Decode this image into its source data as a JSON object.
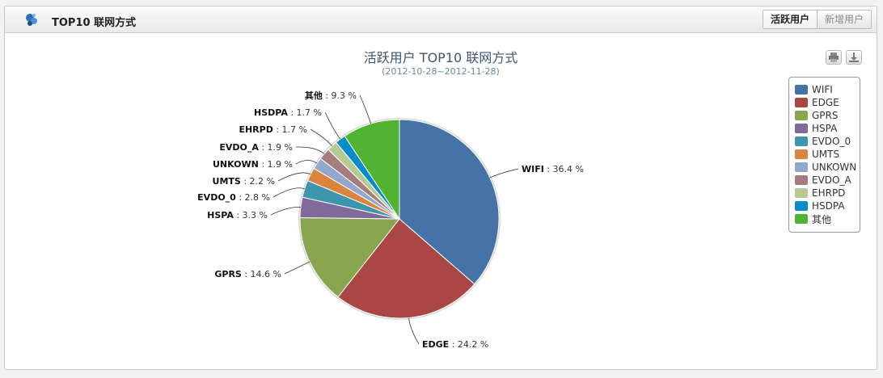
{
  "header": {
    "title": "TOP10 联网方式",
    "tabs": [
      {
        "label": "活跃用户",
        "active": true
      },
      {
        "label": "新增用户",
        "active": false
      }
    ]
  },
  "toolbar": {
    "print_icon": "printer-icon",
    "export_icon": "download-icon"
  },
  "chart_data": {
    "type": "pie",
    "title": "活跃用户 TOP10 联网方式",
    "subtitle": "(2012-10-28~2012-11-28)",
    "unit": "%",
    "slices": [
      {
        "name": "WIFI",
        "value": 36.4,
        "color": "#4572A7"
      },
      {
        "name": "EDGE",
        "value": 24.2,
        "color": "#AA4643"
      },
      {
        "name": "GPRS",
        "value": 14.6,
        "color": "#89A54E"
      },
      {
        "name": "HSPA",
        "value": 3.3,
        "color": "#80699B"
      },
      {
        "name": "EVDO_0",
        "value": 2.8,
        "color": "#3D96AE"
      },
      {
        "name": "UMTS",
        "value": 2.2,
        "color": "#DB843D"
      },
      {
        "name": "UNKOWN",
        "value": 1.9,
        "color": "#92A8CD"
      },
      {
        "name": "EVDO_A",
        "value": 1.9,
        "color": "#A47D7C"
      },
      {
        "name": "EHRPD",
        "value": 1.7,
        "color": "#B5CA92"
      },
      {
        "name": "HSDPA",
        "value": 1.7,
        "color": "#058DC7"
      },
      {
        "name": "其他",
        "value": 9.3,
        "color": "#50B432"
      }
    ],
    "legend_position": "right"
  }
}
